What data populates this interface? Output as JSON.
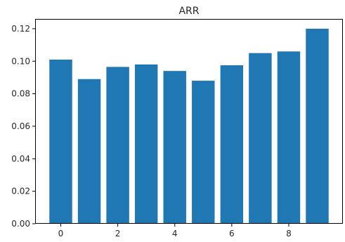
{
  "chart_data": {
    "type": "bar",
    "title": "ARR",
    "xlabel": "",
    "ylabel": "",
    "bar_color": "#1f77b4",
    "x": [
      0,
      1,
      2,
      3,
      4,
      5,
      6,
      7,
      8,
      9
    ],
    "values": [
      0.101,
      0.089,
      0.0965,
      0.098,
      0.094,
      0.088,
      0.0975,
      0.105,
      0.106,
      0.12
    ],
    "xticks": [
      0,
      2,
      4,
      6,
      8
    ],
    "xtick_labels": [
      "0",
      "2",
      "4",
      "6",
      "8"
    ],
    "yticks": [
      0.0,
      0.02,
      0.04,
      0.06,
      0.08,
      0.1,
      0.12
    ],
    "ytick_labels": [
      "0.00",
      "0.02",
      "0.04",
      "0.06",
      "0.08",
      "0.10",
      "0.12"
    ],
    "xlim": [
      -0.9,
      9.9
    ],
    "ylim": [
      0,
      0.126
    ],
    "grid": false,
    "legend": "none"
  }
}
